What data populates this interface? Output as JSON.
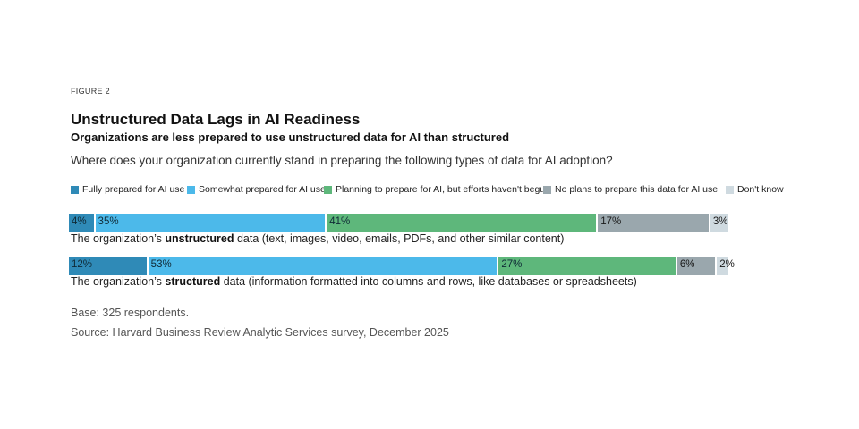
{
  "figure_label": "FIGURE 2",
  "title": "Unstructured Data Lags in AI Readiness",
  "subtitle": "Organizations are less prepared to use unstructured data for AI than structured",
  "question": "Where does your organization currently stand in preparing the following types of data for AI adoption?",
  "base": "Base: 325 respondents.",
  "source": "Source: Harvard Business Review Analytic Services survey, December 2025",
  "colors": {
    "fully": "#2f8ab7",
    "somewhat": "#4cb9ea",
    "planning": "#5eb77b",
    "no_plans": "#9aa7ad",
    "dont_know": "#cfdae0"
  },
  "chart_data": {
    "type": "bar",
    "orientation": "horizontal",
    "stacked": true,
    "categories": [
      "The organization's unstructured data (text, images, video, emails, PDFs, and other similar content)",
      "The organization's structured data (information formatted into columns and rows, like databases or spreadsheets)"
    ],
    "category_labels": [
      {
        "prefix": "The organization’s ",
        "bold": "unstructured",
        "suffix": " data (text, images, video, emails, PDFs, and other similar content)"
      },
      {
        "prefix": "The organization’s ",
        "bold": "structured",
        "suffix": " data (information formatted into columns and rows, like databases or spreadsheets)"
      }
    ],
    "series": [
      {
        "name": "Fully prepared for AI use",
        "color_key": "fully",
        "values": [
          4,
          12
        ]
      },
      {
        "name": "Somewhat prepared for AI use",
        "color_key": "somewhat",
        "values": [
          35,
          53
        ]
      },
      {
        "name": "Planning to prepare for AI, but efforts haven't begun",
        "color_key": "planning",
        "values": [
          41,
          27
        ]
      },
      {
        "name": "No plans to prepare this data for AI use",
        "color_key": "no_plans",
        "values": [
          17,
          6
        ]
      },
      {
        "name": "Don't know",
        "color_key": "dont_know",
        "values": [
          3,
          2
        ]
      }
    ],
    "unit": "%",
    "xlim": [
      0,
      100
    ],
    "legend_position": "top",
    "grid": false
  }
}
